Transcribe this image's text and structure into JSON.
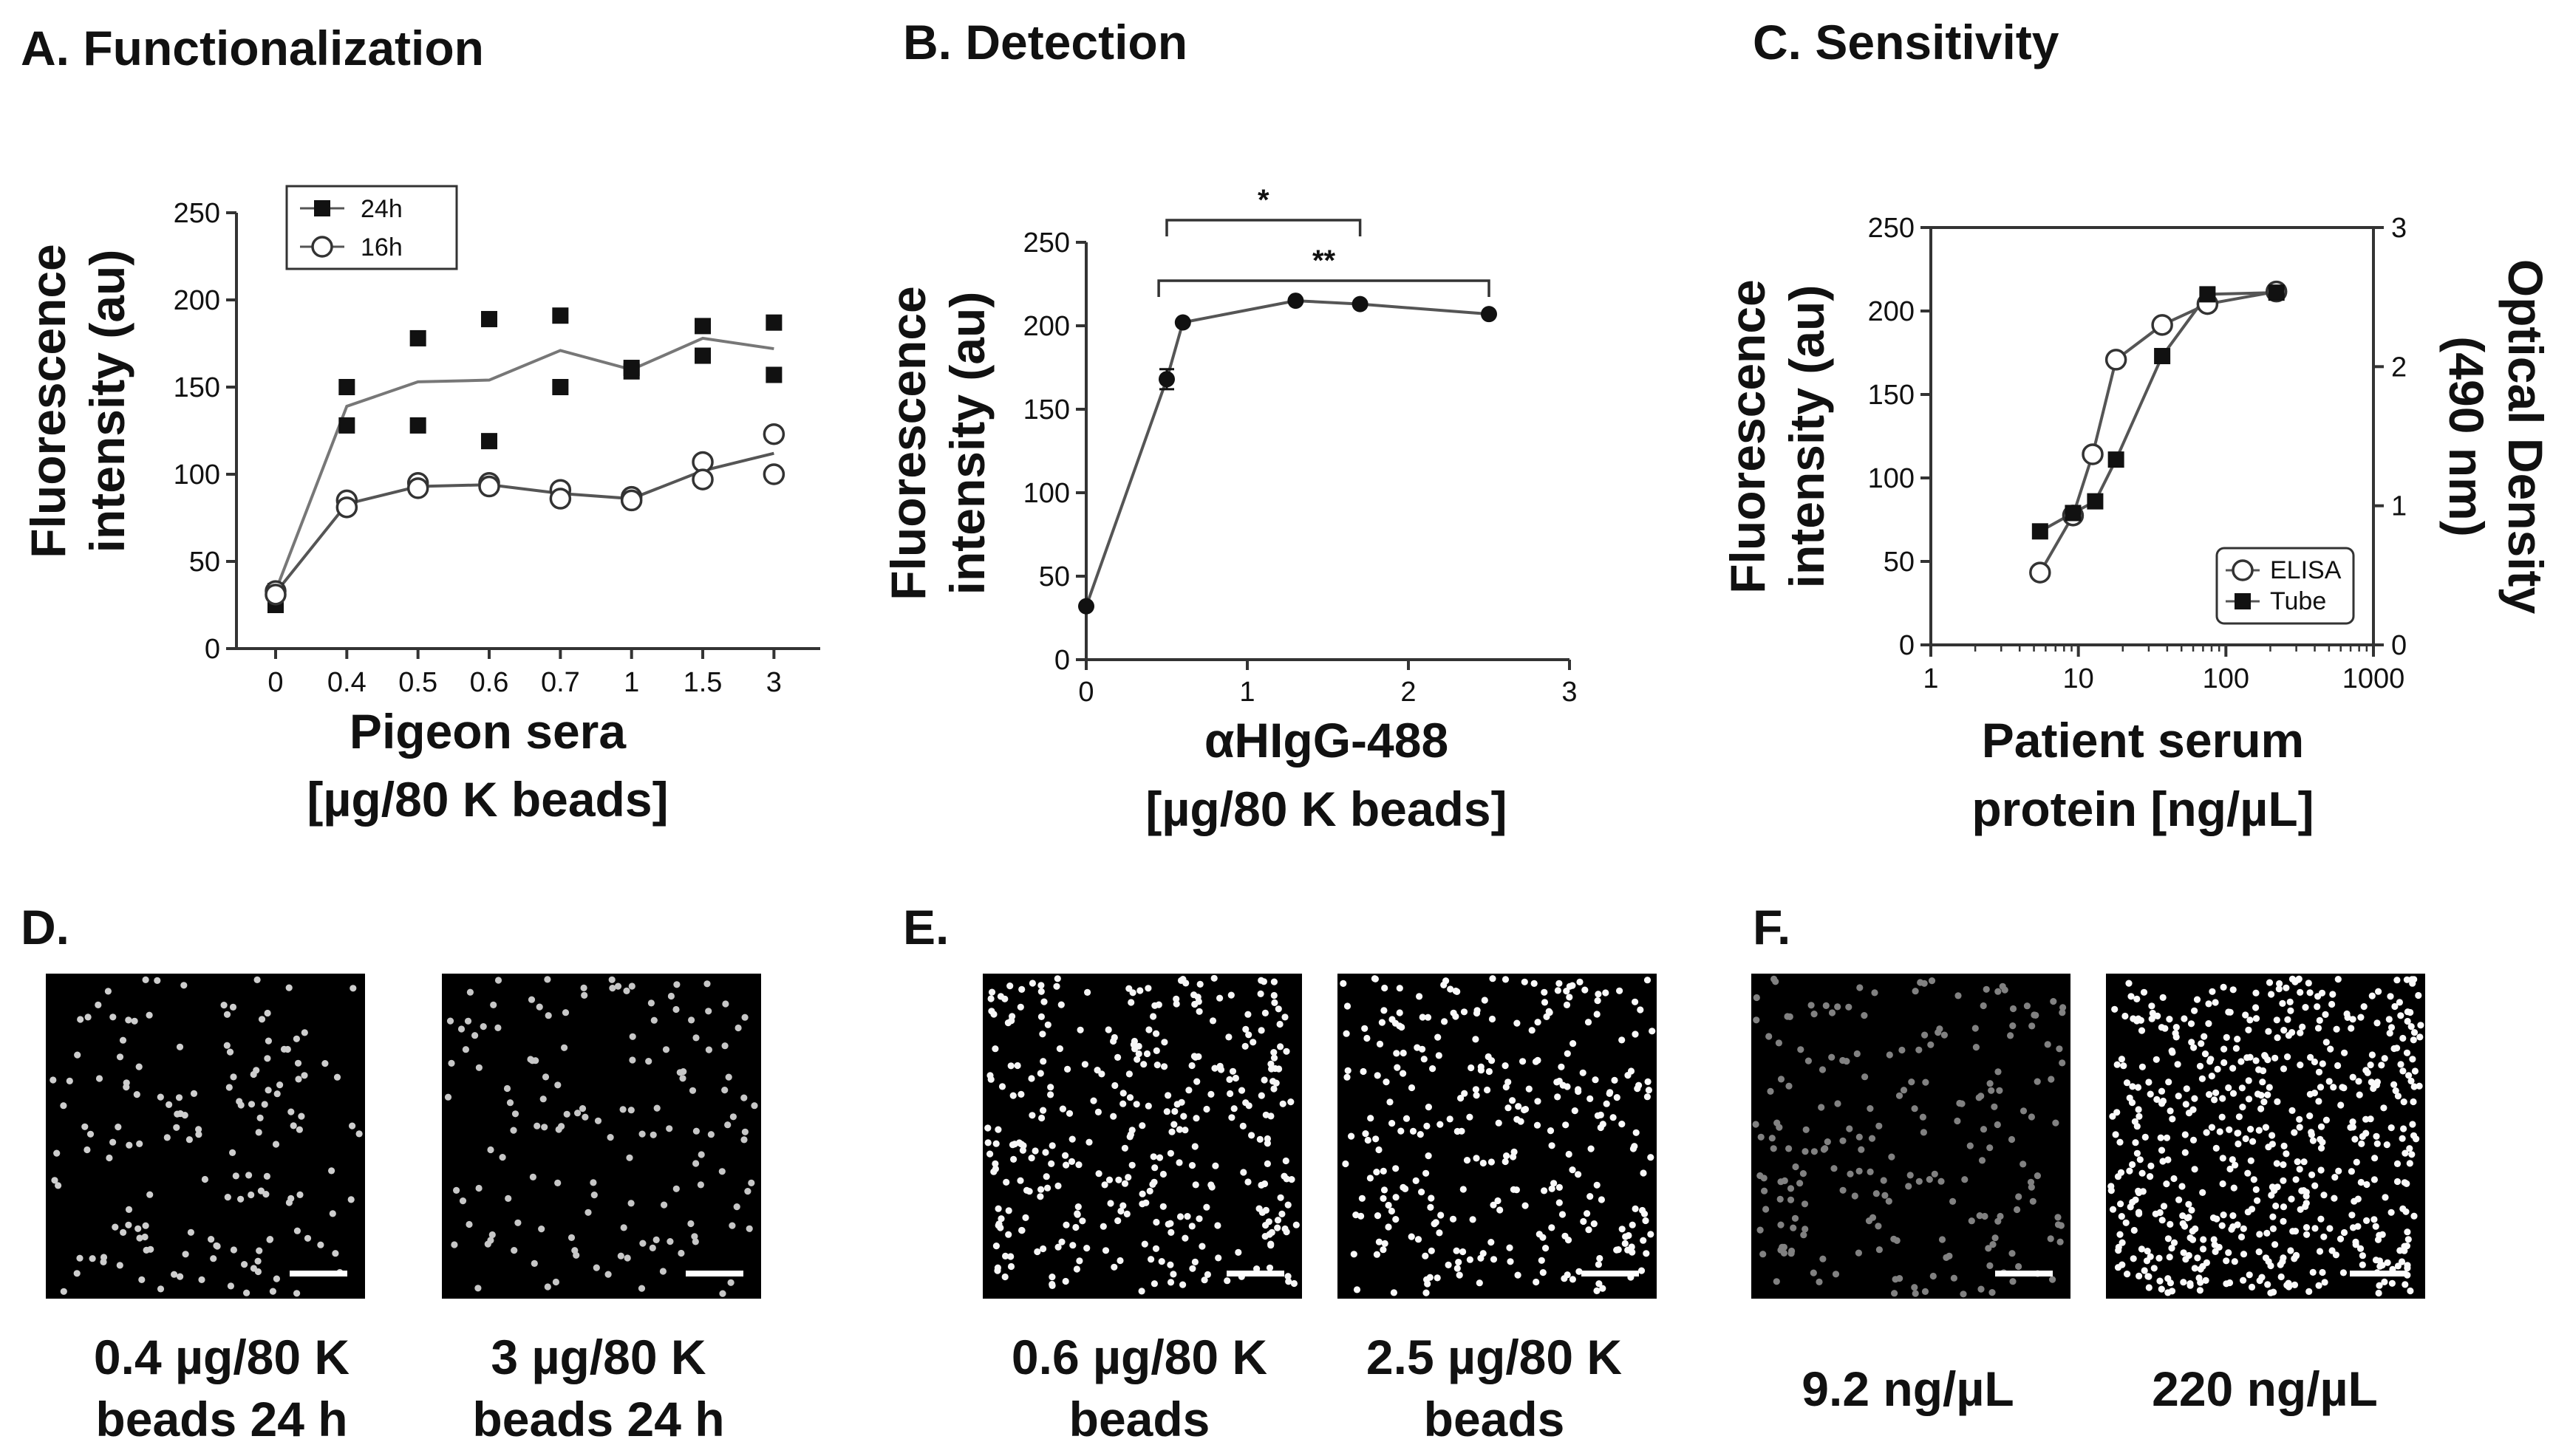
{
  "chart_data": [
    {
      "panel": "A",
      "type": "scatter",
      "title": "A. Functionalization",
      "xlabel": [
        "Pigeon sera",
        "[µg/80 K beads]"
      ],
      "ylabel": [
        "Fluorescence",
        "intensity (au)"
      ],
      "categories": [
        "0",
        "0.4",
        "0.5",
        "0.6",
        "0.7",
        "1",
        "1.5",
        "3"
      ],
      "ylim": [
        0,
        250
      ],
      "yticks": [
        0,
        50,
        100,
        150,
        200,
        250
      ],
      "legend": {
        "position": "top-left",
        "entries": [
          "24h",
          "16h"
        ]
      },
      "series": [
        {
          "name": "24h",
          "marker": "filled-square",
          "points": [
            [
              0,
              33
            ],
            [
              0,
              25
            ],
            [
              1,
              150
            ],
            [
              1,
              128
            ],
            [
              2,
              178
            ],
            [
              2,
              128
            ],
            [
              3,
              189
            ],
            [
              3,
              119
            ],
            [
              4,
              191
            ],
            [
              4,
              150
            ],
            [
              5,
              161
            ],
            [
              5,
              159
            ],
            [
              6,
              185
            ],
            [
              6,
              168
            ],
            [
              7,
              187
            ],
            [
              7,
              157
            ]
          ],
          "line": [
            33,
            139,
            153,
            154,
            171,
            160,
            178,
            172
          ]
        },
        {
          "name": "16h",
          "marker": "open-circle",
          "points": [
            [
              0,
              33
            ],
            [
              0,
              31
            ],
            [
              1,
              85
            ],
            [
              1,
              81
            ],
            [
              2,
              95
            ],
            [
              2,
              92
            ],
            [
              3,
              95
            ],
            [
              3,
              93
            ],
            [
              4,
              91
            ],
            [
              4,
              86
            ],
            [
              5,
              87
            ],
            [
              5,
              85
            ],
            [
              6,
              107
            ],
            [
              6,
              97
            ],
            [
              7,
              123
            ],
            [
              7,
              100
            ]
          ],
          "line": [
            32,
            83,
            93,
            94,
            89,
            86,
            102,
            112
          ]
        }
      ]
    },
    {
      "panel": "B",
      "type": "line",
      "title": "B. Detection",
      "xlabel": [
        "αHIgG-488",
        "[µg/80 K beads]"
      ],
      "ylabel": [
        "Fluorescence",
        "intensity (au)"
      ],
      "xlim": [
        0,
        3
      ],
      "xticks": [
        0,
        1,
        2,
        3
      ],
      "ylim": [
        0,
        250
      ],
      "yticks": [
        0,
        50,
        100,
        150,
        200,
        250
      ],
      "x": [
        0,
        0.5,
        0.6,
        1.3,
        1.7,
        2.5
      ],
      "y": [
        32,
        168,
        202,
        215,
        213,
        207
      ],
      "error": [
        0,
        6,
        0,
        0,
        0,
        0
      ],
      "significance": [
        {
          "from": 0.5,
          "to": 1.7,
          "label": "*"
        },
        {
          "from": 0.45,
          "to": 2.5,
          "label": "**"
        }
      ]
    },
    {
      "panel": "C",
      "type": "line",
      "title": "C. Sensitivity",
      "xlabel": [
        "Patient serum",
        "protein [ng/µL]"
      ],
      "ylabel": [
        "Fluorescence",
        "intensity (au)"
      ],
      "y2label": [
        "Optical Density",
        "(490 nm)"
      ],
      "xscale": "log",
      "xlim": [
        1,
        1000
      ],
      "xticks": [
        "1",
        "10",
        "100",
        "1000"
      ],
      "ylim": [
        0,
        250
      ],
      "yticks": [
        0,
        50,
        100,
        150,
        200,
        250
      ],
      "y2lim": [
        0,
        3
      ],
      "y2ticks": [
        0,
        1,
        2,
        3
      ],
      "legend": {
        "position": "bottom-right",
        "entries": [
          "ELISA",
          "Tube"
        ]
      },
      "series": [
        {
          "name": "ELISA",
          "axis": "right",
          "marker": "open-circle",
          "x": [
            5.5,
            9.2,
            12.5,
            18,
            37,
            75,
            220
          ],
          "y": [
            0.52,
            0.93,
            1.37,
            2.05,
            2.3,
            2.45,
            2.54
          ]
        },
        {
          "name": "Tube",
          "axis": "left",
          "marker": "filled-square",
          "x": [
            5.5,
            9.2,
            13,
            18,
            37,
            75,
            220
          ],
          "y": [
            68,
            79,
            86,
            111,
            173,
            210,
            211
          ]
        }
      ]
    }
  ],
  "images": {
    "panels": [
      {
        "label": "D.",
        "items": [
          {
            "caption": [
              "0.4 µg/80 K",
              "beads 24 h"
            ],
            "density": 150,
            "brightness": 0.72
          },
          {
            "caption": [
              "3 µg/80 K",
              "beads 24 h"
            ],
            "density": 140,
            "brightness": 0.68
          }
        ]
      },
      {
        "label": "E.",
        "items": [
          {
            "caption": [
              "0.6 µg/80 K",
              "beads"
            ],
            "density": 340,
            "brightness": 0.95
          },
          {
            "caption": [
              "2.5 µg/80 K",
              "beads"
            ],
            "density": 300,
            "brightness": 0.97
          }
        ]
      },
      {
        "label": "F.",
        "items": [
          {
            "caption": [
              "9.2 ng/µL"
            ],
            "density": 210,
            "brightness": 0.28
          },
          {
            "caption": [
              "220 ng/µL"
            ],
            "density": 560,
            "brightness": 0.97
          }
        ]
      }
    ]
  }
}
